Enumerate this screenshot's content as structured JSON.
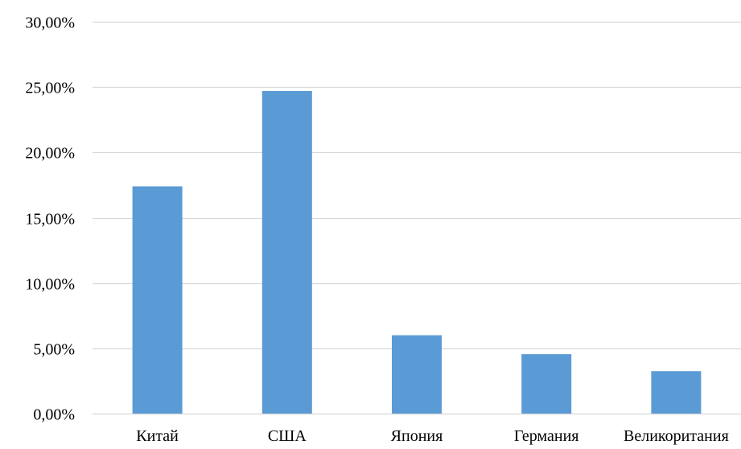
{
  "chart_data": {
    "type": "bar",
    "title": "",
    "xlabel": "",
    "ylabel": "",
    "categories": [
      "Китай",
      "США",
      "Япония",
      "Германия",
      "Великоритания"
    ],
    "values": [
      17.4,
      24.7,
      6.0,
      4.55,
      3.25
    ],
    "ylim": [
      0,
      30
    ],
    "yticks": [
      0,
      5,
      10,
      15,
      20,
      25,
      30
    ],
    "ytick_labels": [
      "0,00%",
      "5,00%",
      "10,00%",
      "15,00%",
      "20,00%",
      "25,00%",
      "30,00%"
    ],
    "grid": true,
    "legend": "none",
    "colors": {
      "bar": "#5b9bd5",
      "grid": "#d9d9d9"
    }
  }
}
